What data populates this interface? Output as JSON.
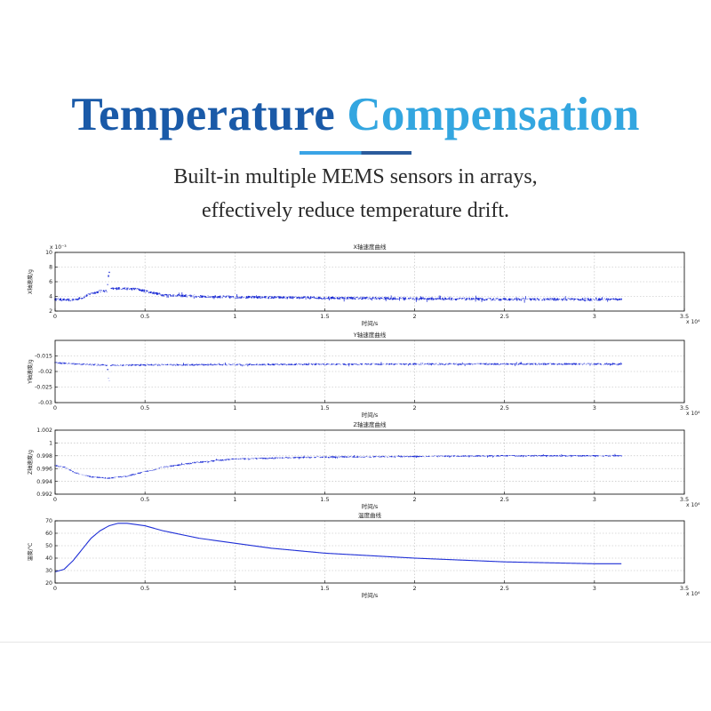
{
  "title": {
    "part1": "Temperature",
    "part2": "Compensation"
  },
  "subtitle": {
    "line1": "Built-in multiple MEMS sensors in arrays,",
    "line2": "effectively reduce temperature drift."
  },
  "colors": {
    "title_dark": "#1a5aa8",
    "title_light": "#33a6e0",
    "series": "#1f2fd6",
    "axis": "#000000",
    "grid": "#b8b8b8"
  },
  "chart_data": [
    {
      "type": "line",
      "title": "X轴速度曲线",
      "xlabel": "时间/s",
      "ylabel": "X轴速度/g",
      "x_multiplier": "x 10⁴",
      "y_multiplier": "x 10⁻³",
      "xlim": [
        0,
        3.5
      ],
      "ylim": [
        2,
        10
      ],
      "xticks": [
        0,
        0.5,
        1,
        1.5,
        2,
        2.5,
        3,
        3.5
      ],
      "xticklabels": [
        "0",
        "0.5",
        "1",
        "1.5",
        "2",
        "2.5",
        "3",
        "3.5"
      ],
      "yticks": [
        2,
        4,
        6,
        8,
        10
      ],
      "yticklabels": [
        "2",
        "4",
        "6",
        "8",
        "10"
      ],
      "grid": true,
      "series": [
        {
          "x": [
            0,
            0.1,
            0.15,
            0.2,
            0.25,
            0.29,
            0.3,
            0.31,
            0.35,
            0.45,
            0.6,
            0.8,
            1.0,
            1.5,
            2.0,
            2.5,
            3.0,
            3.15
          ],
          "y": [
            3.6,
            3.5,
            3.8,
            4.4,
            4.7,
            4.8,
            7.6,
            5.0,
            5.1,
            5.0,
            4.2,
            4.0,
            3.9,
            3.8,
            3.7,
            3.6,
            3.6,
            3.6
          ],
          "noise": 0.4
        }
      ]
    },
    {
      "type": "line",
      "title": "Y轴速度曲线",
      "xlabel": "时间/s",
      "ylabel": "Y轴速度/g",
      "x_multiplier": "x 10⁴",
      "xlim": [
        0,
        3.5
      ],
      "ylim": [
        -0.03,
        -0.01
      ],
      "xticks": [
        0,
        0.5,
        1,
        1.5,
        2,
        2.5,
        3,
        3.5
      ],
      "xticklabels": [
        "0",
        "0.5",
        "1",
        "1.5",
        "2",
        "2.5",
        "3",
        "3.5"
      ],
      "yticks": [
        -0.015,
        -0.02,
        -0.025,
        -0.03
      ],
      "yticklabels": [
        "-0.015",
        "-0.02",
        "-0.025",
        "-0.03"
      ],
      "grid": true,
      "series": [
        {
          "x": [
            0,
            0.1,
            0.2,
            0.29,
            0.3,
            0.31,
            0.5,
            1.0,
            1.5,
            2.0,
            2.5,
            3.0,
            3.15
          ],
          "y": [
            -0.0172,
            -0.0175,
            -0.0178,
            -0.018,
            -0.0235,
            -0.018,
            -0.0179,
            -0.0178,
            -0.0177,
            -0.0176,
            -0.0176,
            -0.0176,
            -0.0176
          ],
          "noise": 0.0006
        }
      ]
    },
    {
      "type": "line",
      "title": "Z轴速度曲线",
      "xlabel": "时间/s",
      "ylabel": "Z轴速度/g",
      "x_multiplier": "x 10⁴",
      "xlim": [
        0,
        3.5
      ],
      "ylim": [
        0.992,
        1.002
      ],
      "xticks": [
        0,
        0.5,
        1,
        1.5,
        2,
        2.5,
        3,
        3.5
      ],
      "xticklabels": [
        "0",
        "0.5",
        "1",
        "1.5",
        "2",
        "2.5",
        "3",
        "3.5"
      ],
      "yticks": [
        1.002,
        1,
        0.998,
        0.996,
        0.994,
        0.992
      ],
      "yticklabels": [
        "1.002",
        "1",
        "0.998",
        "0.996",
        "0.994",
        "0.992"
      ],
      "grid": true,
      "series": [
        {
          "x": [
            0,
            0.05,
            0.1,
            0.15,
            0.2,
            0.3,
            0.4,
            0.5,
            0.6,
            0.8,
            1.0,
            1.5,
            2.0,
            2.5,
            3.0,
            3.15
          ],
          "y": [
            0.9965,
            0.9962,
            0.9955,
            0.995,
            0.9947,
            0.9945,
            0.9948,
            0.9955,
            0.9962,
            0.997,
            0.9975,
            0.9978,
            0.9979,
            0.998,
            0.998,
            0.998
          ],
          "noise": 0.00025
        }
      ]
    },
    {
      "type": "line",
      "title": "温度曲线",
      "xlabel": "时间/s",
      "ylabel": "温度/℃",
      "x_multiplier": "x 10⁴",
      "xlim": [
        0,
        3.5
      ],
      "ylim": [
        20,
        70
      ],
      "xticks": [
        0,
        0.5,
        1,
        1.5,
        2,
        2.5,
        3,
        3.5
      ],
      "xticklabels": [
        "0",
        "0.5",
        "1",
        "1.5",
        "2",
        "2.5",
        "3",
        "3.5"
      ],
      "yticks": [
        20,
        30,
        40,
        50,
        60,
        70
      ],
      "yticklabels": [
        "20",
        "30",
        "40",
        "50",
        "60",
        "70"
      ],
      "grid": true,
      "series": [
        {
          "x": [
            0,
            0.05,
            0.1,
            0.15,
            0.2,
            0.25,
            0.3,
            0.35,
            0.4,
            0.45,
            0.5,
            0.6,
            0.7,
            0.8,
            1.0,
            1.2,
            1.5,
            2.0,
            2.5,
            3.0,
            3.15
          ],
          "y": [
            29,
            31,
            38,
            47,
            56,
            62,
            66,
            68,
            68,
            67,
            66,
            62,
            59,
            56,
            52,
            48,
            44,
            40,
            37,
            35.5,
            35.5
          ],
          "noise": 0
        }
      ]
    }
  ]
}
